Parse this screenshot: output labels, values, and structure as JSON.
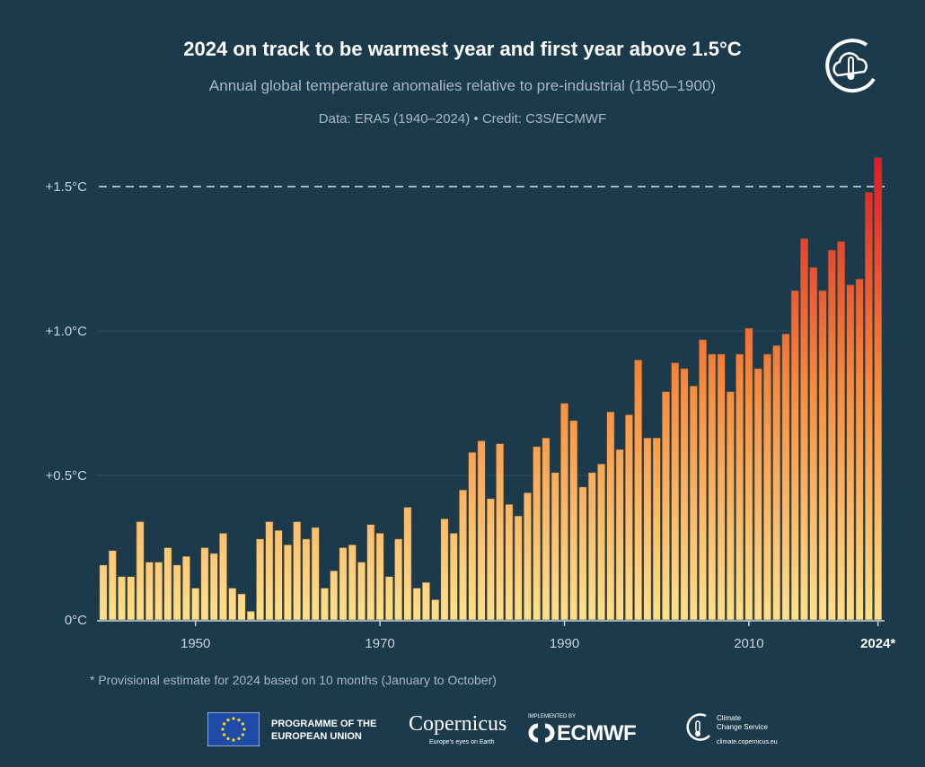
{
  "chart_data": {
    "type": "bar",
    "title": "2024 on track to be warmest year and first year above 1.5°C",
    "subtitle": "Annual global temperature anomalies relative to pre-industrial (1850–1900)",
    "source": "Data: ERA5 (1940–2024) • Credit: C3S/ECMWF",
    "footnote": "* Provisional estimate for 2024 based on 10 months (January to October)",
    "xlabel": "",
    "ylabel": "",
    "ylim": [
      0,
      1.6
    ],
    "y_ticks": [
      {
        "value": 0,
        "label": "0°C"
      },
      {
        "value": 0.5,
        "label": "+0.5°C"
      },
      {
        "value": 1.0,
        "label": "+1.0°C"
      },
      {
        "value": 1.5,
        "label": "+1.5°C"
      }
    ],
    "x_ticks": [
      {
        "value": 1950,
        "label": "1950"
      },
      {
        "value": 1970,
        "label": "1970"
      },
      {
        "value": 1990,
        "label": "1990"
      },
      {
        "value": 2010,
        "label": "2010"
      },
      {
        "value": 2024,
        "label": "2024*"
      }
    ],
    "reference_line": {
      "value": 1.5,
      "style": "dashed"
    },
    "grid": "horizontal",
    "color_scale": {
      "low": "#ffe08a",
      "mid": "#f98c3c",
      "high": "#dd1c24"
    },
    "categories": [
      1940,
      1941,
      1942,
      1943,
      1944,
      1945,
      1946,
      1947,
      1948,
      1949,
      1950,
      1951,
      1952,
      1953,
      1954,
      1955,
      1956,
      1957,
      1958,
      1959,
      1960,
      1961,
      1962,
      1963,
      1964,
      1965,
      1966,
      1967,
      1968,
      1969,
      1970,
      1971,
      1972,
      1973,
      1974,
      1975,
      1976,
      1977,
      1978,
      1979,
      1980,
      1981,
      1982,
      1983,
      1984,
      1985,
      1986,
      1987,
      1988,
      1989,
      1990,
      1991,
      1992,
      1993,
      1994,
      1995,
      1996,
      1997,
      1998,
      1999,
      2000,
      2001,
      2002,
      2003,
      2004,
      2005,
      2006,
      2007,
      2008,
      2009,
      2010,
      2011,
      2012,
      2013,
      2014,
      2015,
      2016,
      2017,
      2018,
      2019,
      2020,
      2021,
      2022,
      2023,
      2024
    ],
    "values": [
      0.19,
      0.24,
      0.15,
      0.15,
      0.34,
      0.2,
      0.2,
      0.25,
      0.19,
      0.22,
      0.11,
      0.25,
      0.23,
      0.3,
      0.11,
      0.09,
      0.03,
      0.28,
      0.34,
      0.31,
      0.26,
      0.34,
      0.28,
      0.32,
      0.11,
      0.17,
      0.25,
      0.26,
      0.2,
      0.33,
      0.3,
      0.15,
      0.28,
      0.39,
      0.11,
      0.13,
      0.07,
      0.35,
      0.3,
      0.45,
      0.58,
      0.62,
      0.42,
      0.61,
      0.4,
      0.36,
      0.44,
      0.6,
      0.63,
      0.51,
      0.75,
      0.69,
      0.46,
      0.51,
      0.54,
      0.72,
      0.59,
      0.71,
      0.9,
      0.63,
      0.63,
      0.79,
      0.89,
      0.87,
      0.81,
      0.97,
      0.92,
      0.92,
      0.79,
      0.92,
      1.01,
      0.87,
      0.92,
      0.95,
      0.99,
      1.14,
      1.32,
      1.22,
      1.14,
      1.28,
      1.31,
      1.16,
      1.18,
      1.48,
      1.6
    ]
  },
  "logos": {
    "eu": "PROGRAMME OF THE EUROPEAN UNION",
    "eu_line1": "PROGRAMME OF THE",
    "eu_line2": "EUROPEAN UNION",
    "copernicus": "Copernicus",
    "copernicus_tagline": "Europe's eyes on Earth",
    "implemented_by": "IMPLEMENTED BY",
    "ecmwf": "ECMWF",
    "c3s_line1": "Climate",
    "c3s_line2": "Change Service",
    "c3s_url": "climate.copernicus.eu",
    "top_right_icon": "cloud-thermometer-icon"
  }
}
